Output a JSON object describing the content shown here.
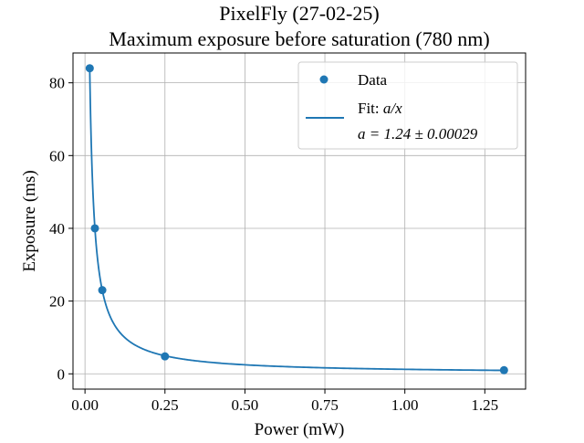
{
  "chart_data": {
    "type": "scatter",
    "title_lines": [
      "PixelFly (27-02-25)",
      "Maximum exposure before saturation (780 nm)"
    ],
    "xlabel": "Power (mW)",
    "ylabel": "Exposure (ms)",
    "xlim": [
      -0.0375,
      1.3775
    ],
    "ylim": [
      -4.2,
      88.2
    ],
    "x_ticks": [
      0.0,
      0.25,
      0.5,
      0.75,
      1.0,
      1.25
    ],
    "x_tick_labels": [
      "0.00",
      "0.25",
      "0.50",
      "0.75",
      "1.00",
      "1.25"
    ],
    "y_ticks": [
      0,
      20,
      40,
      60,
      80
    ],
    "y_tick_labels": [
      "0",
      "20",
      "40",
      "60",
      "80"
    ],
    "grid": true,
    "legend_position": "top-right",
    "series": [
      {
        "name": "Data",
        "kind": "scatter",
        "color": "#1f77b4",
        "x": [
          0.0148,
          0.031,
          0.054,
          0.25,
          1.31
        ],
        "y": [
          84,
          40,
          23,
          4.8,
          1.0
        ]
      },
      {
        "name": "Fit: a/x",
        "kind": "line",
        "color": "#1f77b4",
        "function": "a/x",
        "a": 1.24,
        "a_error": 0.00029,
        "x_range": [
          0.0148,
          1.31
        ]
      }
    ],
    "legend": {
      "data_label": "Data",
      "fit_label_prefix": "Fit: ",
      "fit_label_math": "a/x",
      "fit_param_line": "a = 1.24 ± 0.00029"
    }
  }
}
